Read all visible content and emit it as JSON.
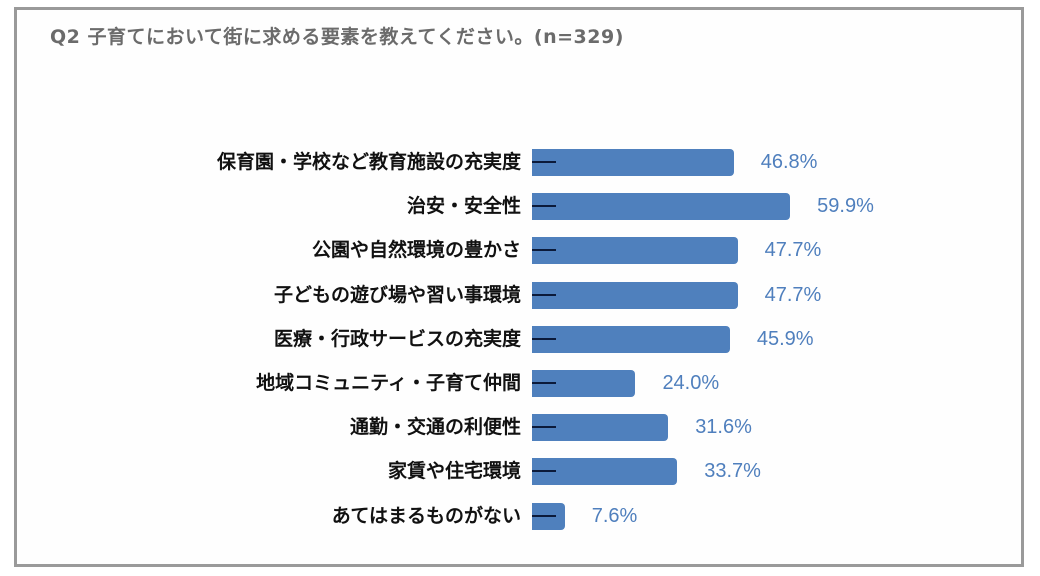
{
  "title": "Q2 子育てにおいて街に求める要素を教えてください。(n=329)",
  "colors": {
    "bar": "#4f80bd",
    "value_label": "#4f7fbd",
    "category_label": "#111111",
    "title": "#6b6b6b",
    "frame_border": "#9a9a9a"
  },
  "chart_data": {
    "type": "bar",
    "orientation": "horizontal",
    "title": "Q2 子育てにおいて街に求める要素を教えてください。(n=329)",
    "xlabel": "",
    "ylabel": "",
    "unit": "%",
    "sample_size": 329,
    "grid": false,
    "legend": null,
    "categories": [
      "保育園・学校など教育施設の充実度",
      "治安・安全性",
      "公園や自然環境の豊かさ",
      "子どもの遊び場や習い事環境",
      "医療・行政サービスの充実度",
      "地域コミュニティ・子育て仲間",
      "通勤・交通の利便性",
      "家賃や住宅環境",
      "あてはまるものがない"
    ],
    "values": [
      46.8,
      59.9,
      47.7,
      47.7,
      45.9,
      24.0,
      31.6,
      33.7,
      7.6
    ],
    "value_labels": [
      "46.8%",
      "59.9%",
      "47.7%",
      "47.7%",
      "45.9%",
      "24.0%",
      "31.6%",
      "33.7%",
      "7.6%"
    ],
    "xlim": [
      0,
      100
    ]
  },
  "rows": [
    {
      "label": "保育園・学校など教育施設の充実度",
      "value": 46.8,
      "display": "46.8%"
    },
    {
      "label": "治安・安全性",
      "value": 59.9,
      "display": "59.9%"
    },
    {
      "label": "公園や自然環境の豊かさ",
      "value": 47.7,
      "display": "47.7%"
    },
    {
      "label": "子どもの遊び場や習い事環境",
      "value": 47.7,
      "display": "47.7%"
    },
    {
      "label": "医療・行政サービスの充実度",
      "value": 45.9,
      "display": "45.9%"
    },
    {
      "label": "地域コミュニティ・子育て仲間",
      "value": 24.0,
      "display": "24.0%"
    },
    {
      "label": "通勤・交通の利便性",
      "value": 31.6,
      "display": "31.6%"
    },
    {
      "label": "家賃や住宅環境",
      "value": 33.7,
      "display": "33.7%"
    },
    {
      "label": "あてはまるものがない",
      "value": 7.6,
      "display": "7.6%"
    }
  ]
}
